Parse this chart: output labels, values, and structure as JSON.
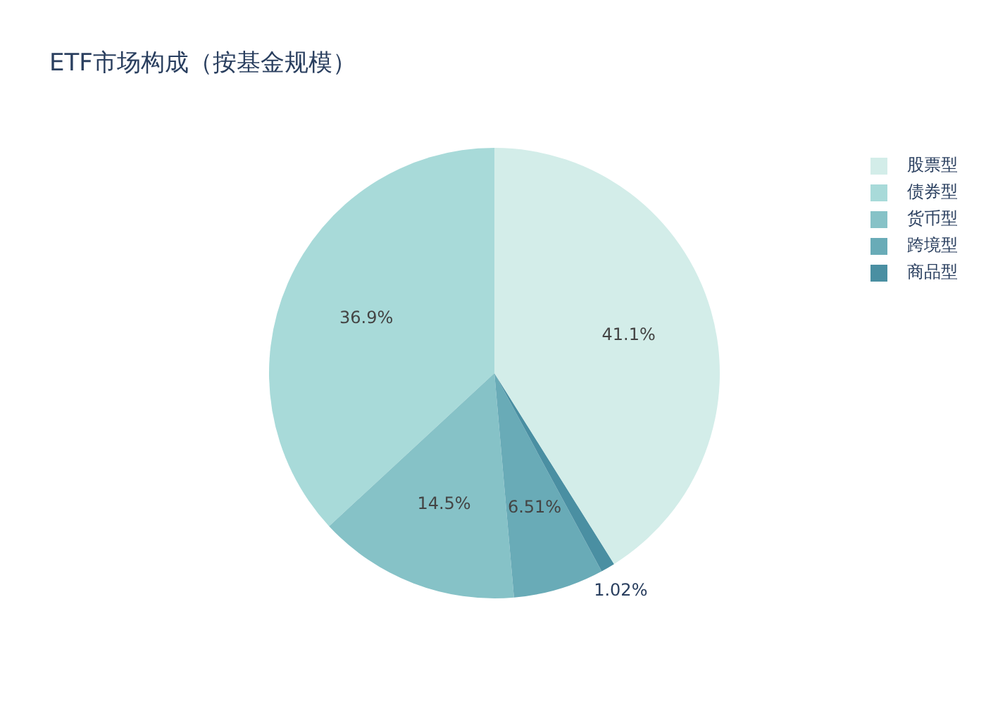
{
  "chart_data": {
    "type": "pie",
    "title": "ETF市场构成（按基金规模）",
    "categories": [
      "股票型",
      "债券型",
      "货币型",
      "跨境型",
      "商品型"
    ],
    "values": [
      41.1,
      36.9,
      14.5,
      6.51,
      1.02
    ],
    "value_labels": [
      "41.1%",
      "36.9%",
      "14.5%",
      "6.51%",
      "1.02%"
    ],
    "colors": [
      "#d3ede9",
      "#a8dad9",
      "#86c2c7",
      "#69abb7",
      "#4a8fa2"
    ],
    "legend": "top right"
  }
}
